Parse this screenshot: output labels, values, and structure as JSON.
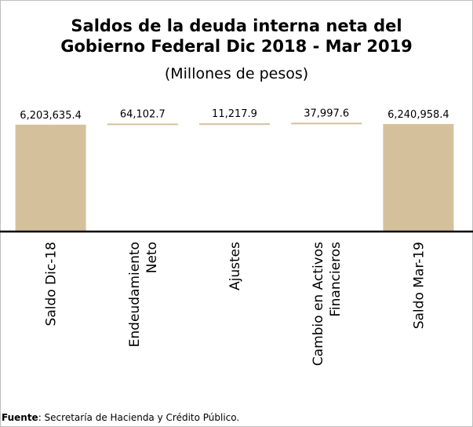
{
  "title_line1": "Saldos de la deuda interna neta del",
  "title_line2": "Gobierno Federal Dic 2018 - Mar 2019",
  "subtitle": "(Millones de pesos)",
  "source_label": "Fuente",
  "source_text": ": Secretaría de Hacienda y Crédito Público.",
  "colors": {
    "bar": "#d4c19c",
    "axis": "#000000",
    "frame": "#bfbfbf"
  },
  "chart_data": {
    "type": "bar",
    "subtype": "waterfall",
    "title": "Saldos de la deuda interna neta del Gobierno Federal Dic 2018 - Mar 2019",
    "subtitle": "(Millones de pesos)",
    "categories": [
      "Saldo Dic-18",
      "Endeudamiento Neto",
      "Ajustes",
      "Cambio en Activos Financieros",
      "Saldo Mar-19"
    ],
    "category_lines": [
      [
        "Saldo Dic-18"
      ],
      [
        "Endeudamiento",
        "Neto"
      ],
      [
        "Ajustes"
      ],
      [
        "Cambio en Activos",
        "Financieros"
      ],
      [
        "Saldo Mar-19"
      ]
    ],
    "values": [
      6203635.4,
      64102.7,
      11217.9,
      37997.6,
      6240958.4
    ],
    "data_labels": [
      "6,203,635.4",
      "64,102.7",
      "11,217.9",
      "37,997.6",
      "6,240,958.4"
    ],
    "kinds": [
      "total",
      "change",
      "change",
      "change",
      "total"
    ],
    "grid": false,
    "legend": "none"
  }
}
